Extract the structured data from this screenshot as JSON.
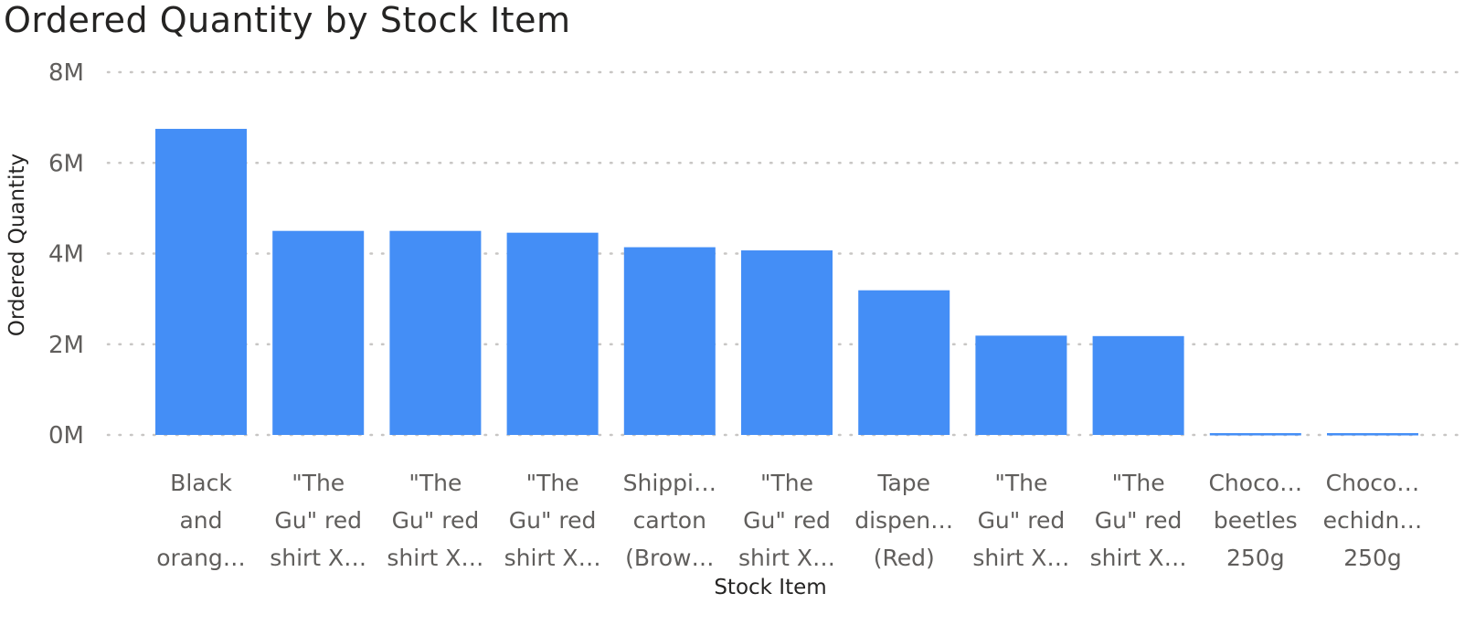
{
  "chart_data": {
    "type": "bar",
    "title": "Ordered Quantity by Stock Item",
    "xlabel": "Stock Item",
    "ylabel": "Ordered Quantity",
    "ylim": [
      0,
      8000000
    ],
    "yticks": [
      {
        "value": 0,
        "label": "0M"
      },
      {
        "value": 2000000,
        "label": "2M"
      },
      {
        "value": 4000000,
        "label": "4M"
      },
      {
        "value": 6000000,
        "label": "6M"
      },
      {
        "value": 8000000,
        "label": "8M"
      }
    ],
    "grid": true,
    "bar_color": "#448EF6",
    "categories": [
      [
        "Black",
        "and",
        "orang…"
      ],
      [
        "\"The",
        "Gu\" red",
        "shirt X…"
      ],
      [
        "\"The",
        "Gu\" red",
        "shirt X…"
      ],
      [
        "\"The",
        "Gu\" red",
        "shirt X…"
      ],
      [
        "Shippi…",
        "carton",
        "(Brow…"
      ],
      [
        "\"The",
        "Gu\" red",
        "shirt X…"
      ],
      [
        "Tape",
        "dispen…",
        "(Red)"
      ],
      [
        "\"The",
        "Gu\" red",
        "shirt X…"
      ],
      [
        "\"The",
        "Gu\" red",
        "shirt X…"
      ],
      [
        "Choco…",
        "beetles",
        "250g"
      ],
      [
        "Choco…",
        "echidn…",
        "250g"
      ]
    ],
    "values": [
      6750000,
      4500000,
      4500000,
      4460000,
      4140000,
      4070000,
      3190000,
      2190000,
      2180000,
      40000,
      40000
    ]
  }
}
